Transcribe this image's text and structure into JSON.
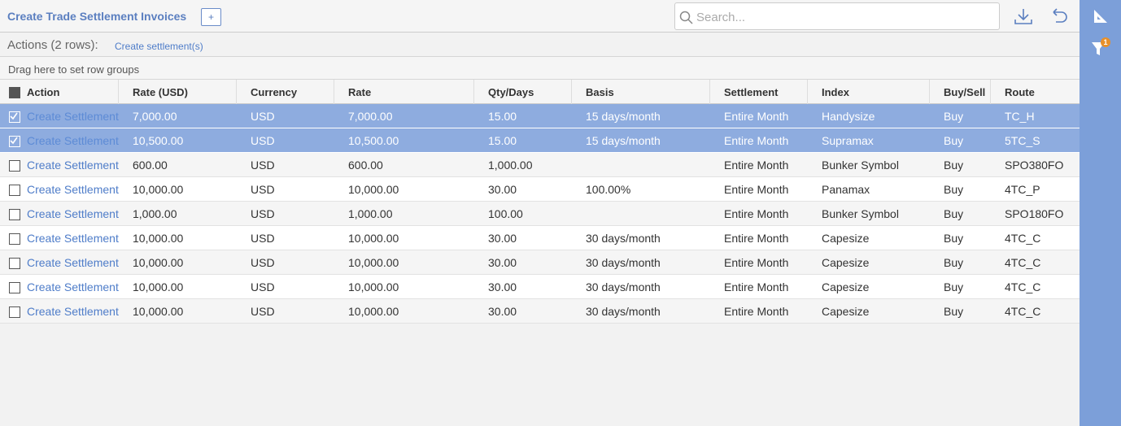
{
  "header": {
    "title": "Create Trade Settlement Invoices",
    "add_button": "+",
    "search_placeholder": "Search..."
  },
  "actions": {
    "label": "Actions (2 rows):",
    "link": "Create settlement(s)"
  },
  "group_bar": "Drag here to set row groups",
  "sidebar": {
    "filter_count": "1"
  },
  "table": {
    "columns": [
      "Action",
      "Rate (USD)",
      "Currency",
      "Rate",
      "Qty/Days",
      "Basis",
      "Settlement",
      "Index",
      "Buy/Sell",
      "Route"
    ],
    "rows": [
      {
        "selected": true,
        "cells": [
          "Create Settlement",
          "7,000.00",
          "USD",
          "7,000.00",
          "15.00",
          "15 days/month",
          "Entire Month",
          "Handysize",
          "Buy",
          "TC_H"
        ]
      },
      {
        "selected": true,
        "cells": [
          "Create Settlement",
          "10,500.00",
          "USD",
          "10,500.00",
          "15.00",
          "15 days/month",
          "Entire Month",
          "Supramax",
          "Buy",
          "5TC_S"
        ]
      },
      {
        "selected": false,
        "cells": [
          "Create Settlement",
          "600.00",
          "USD",
          "600.00",
          "1,000.00",
          null,
          "Entire Month",
          "Bunker Symbol",
          "Buy",
          "SPO380FO"
        ]
      },
      {
        "selected": false,
        "cells": [
          "Create Settlement",
          "10,000.00",
          "USD",
          "10,000.00",
          "30.00",
          "100.00%",
          "Entire Month",
          "Panamax",
          "Buy",
          "4TC_P"
        ]
      },
      {
        "selected": false,
        "cells": [
          "Create Settlement",
          "1,000.00",
          "USD",
          "1,000.00",
          "100.00",
          null,
          "Entire Month",
          "Bunker Symbol",
          "Buy",
          "SPO180FO"
        ]
      },
      {
        "selected": false,
        "cells": [
          "Create Settlement",
          "10,000.00",
          "USD",
          "10,000.00",
          "30.00",
          "30 days/month",
          "Entire Month",
          "Capesize",
          "Buy",
          "4TC_C"
        ]
      },
      {
        "selected": false,
        "cells": [
          "Create Settlement",
          "10,000.00",
          "USD",
          "10,000.00",
          "30.00",
          "30 days/month",
          "Entire Month",
          "Capesize",
          "Buy",
          "4TC_C"
        ]
      },
      {
        "selected": false,
        "cells": [
          "Create Settlement",
          "10,000.00",
          "USD",
          "10,000.00",
          "30.00",
          "30 days/month",
          "Entire Month",
          "Capesize",
          "Buy",
          "4TC_C"
        ]
      },
      {
        "selected": false,
        "cells": [
          "Create Settlement",
          "10,000.00",
          "USD",
          "10,000.00",
          "30.00",
          "30 days/month",
          "Entire Month",
          "Capesize",
          "Buy",
          "4TC_C"
        ]
      }
    ]
  }
}
